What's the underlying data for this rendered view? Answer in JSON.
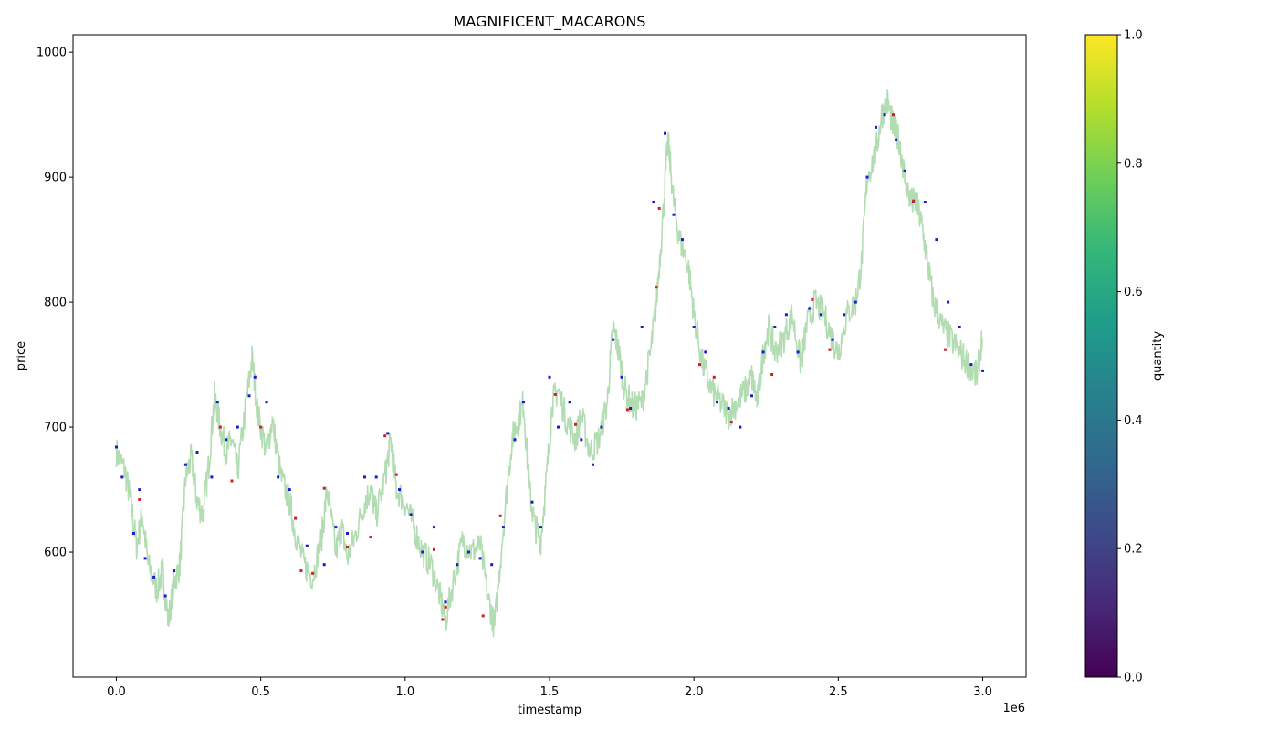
{
  "chart_data": {
    "type": "line",
    "title": "MAGNIFICENT_MACARONS",
    "xlabel": "timestamp",
    "ylabel": "price",
    "x_offset_label": "1e6",
    "xlim": [
      -0.15,
      3.15
    ],
    "ylim": [
      500,
      1014
    ],
    "x_ticks": [
      0.0,
      0.5,
      1.0,
      1.5,
      2.0,
      2.5,
      3.0
    ],
    "x_tick_labels": [
      "0.0",
      "0.5",
      "1.0",
      "1.5",
      "2.0",
      "2.5",
      "3.0"
    ],
    "y_ticks": [
      600,
      700,
      800,
      900,
      1000
    ],
    "y_tick_labels": [
      "600",
      "700",
      "800",
      "900",
      "1000"
    ],
    "grid": false,
    "price_series": {
      "color": "#b2dcb2",
      "x": [
        0.0,
        0.03,
        0.05,
        0.07,
        0.09,
        0.11,
        0.14,
        0.16,
        0.18,
        0.2,
        0.22,
        0.24,
        0.26,
        0.28,
        0.3,
        0.32,
        0.34,
        0.36,
        0.38,
        0.4,
        0.42,
        0.45,
        0.47,
        0.49,
        0.52,
        0.54,
        0.57,
        0.6,
        0.62,
        0.65,
        0.68,
        0.71,
        0.73,
        0.76,
        0.78,
        0.8,
        0.83,
        0.86,
        0.88,
        0.9,
        0.93,
        0.95,
        0.97,
        1.0,
        1.03,
        1.06,
        1.09,
        1.12,
        1.14,
        1.17,
        1.2,
        1.23,
        1.26,
        1.29,
        1.31,
        1.34,
        1.37,
        1.39,
        1.41,
        1.43,
        1.45,
        1.47,
        1.49,
        1.51,
        1.53,
        1.56,
        1.59,
        1.61,
        1.64,
        1.67,
        1.7,
        1.72,
        1.74,
        1.76,
        1.79,
        1.82,
        1.85,
        1.87,
        1.89,
        1.91,
        1.93,
        1.95,
        1.98,
        2.0,
        2.03,
        2.06,
        2.09,
        2.12,
        2.15,
        2.18,
        2.2,
        2.22,
        2.24,
        2.26,
        2.28,
        2.31,
        2.34,
        2.37,
        2.39,
        2.42,
        2.45,
        2.48,
        2.5,
        2.53,
        2.56,
        2.58,
        2.6,
        2.63,
        2.65,
        2.67,
        2.69,
        2.71,
        2.73,
        2.75,
        2.77,
        2.79,
        2.81,
        2.83,
        2.86,
        2.89,
        2.92,
        2.95,
        2.98,
        3.0
      ],
      "y": [
        680,
        665,
        640,
        605,
        630,
        590,
        570,
        585,
        545,
        575,
        590,
        660,
        675,
        640,
        630,
        670,
        725,
        700,
        680,
        690,
        665,
        720,
        755,
        710,
        680,
        705,
        660,
        640,
        615,
        590,
        580,
        610,
        650,
        600,
        620,
        595,
        615,
        640,
        650,
        630,
        660,
        690,
        650,
        640,
        620,
        600,
        590,
        565,
        545,
        580,
        610,
        600,
        605,
        560,
        540,
        620,
        690,
        705,
        720,
        650,
        620,
        610,
        660,
        720,
        730,
        705,
        690,
        710,
        680,
        690,
        720,
        780,
        760,
        730,
        715,
        720,
        760,
        800,
        860,
        930,
        880,
        850,
        830,
        790,
        750,
        730,
        720,
        710,
        720,
        730,
        740,
        720,
        760,
        780,
        760,
        770,
        790,
        750,
        780,
        800,
        790,
        770,
        760,
        790,
        800,
        830,
        900,
        920,
        950,
        960,
        940,
        930,
        900,
        880,
        880,
        860,
        830,
        800,
        780,
        770,
        760,
        750,
        740,
        775
      ],
      "band": 12
    },
    "buy_trades": {
      "color": "#1a1ad0",
      "x": [
        0.0,
        0.02,
        0.06,
        0.08,
        0.1,
        0.13,
        0.17,
        0.2,
        0.24,
        0.28,
        0.33,
        0.35,
        0.38,
        0.42,
        0.46,
        0.48,
        0.52,
        0.56,
        0.6,
        0.66,
        0.72,
        0.76,
        0.8,
        0.86,
        0.9,
        0.94,
        0.98,
        1.02,
        1.06,
        1.1,
        1.14,
        1.18,
        1.22,
        1.26,
        1.3,
        1.34,
        1.38,
        1.41,
        1.44,
        1.47,
        1.5,
        1.53,
        1.57,
        1.61,
        1.65,
        1.68,
        1.72,
        1.75,
        1.78,
        1.82,
        1.86,
        1.9,
        1.93,
        1.96,
        2.0,
        2.04,
        2.08,
        2.12,
        2.16,
        2.2,
        2.24,
        2.28,
        2.32,
        2.36,
        2.4,
        2.44,
        2.48,
        2.52,
        2.56,
        2.6,
        2.63,
        2.66,
        2.7,
        2.73,
        2.76,
        2.8,
        2.84,
        2.88,
        2.92,
        2.96,
        3.0
      ],
      "y": [
        684,
        660,
        615,
        650,
        595,
        580,
        565,
        585,
        670,
        680,
        660,
        720,
        690,
        700,
        725,
        740,
        720,
        660,
        650,
        605,
        590,
        620,
        615,
        660,
        660,
        695,
        650,
        630,
        600,
        620,
        560,
        590,
        600,
        595,
        590,
        620,
        690,
        720,
        640,
        620,
        740,
        700,
        720,
        690,
        670,
        700,
        770,
        740,
        715,
        780,
        880,
        935,
        870,
        850,
        780,
        760,
        720,
        715,
        700,
        725,
        760,
        780,
        790,
        760,
        795,
        790,
        770,
        790,
        800,
        900,
        940,
        950,
        930,
        905,
        880,
        880,
        850,
        800,
        780,
        750,
        745
      ]
    },
    "sell_trades": {
      "color": "#d02020",
      "x": [
        0.08,
        0.36,
        0.4,
        0.5,
        0.62,
        0.64,
        0.68,
        0.72,
        0.8,
        0.88,
        0.93,
        0.97,
        1.1,
        1.13,
        1.14,
        1.27,
        1.33,
        1.52,
        1.59,
        1.77,
        1.87,
        1.88,
        2.02,
        2.07,
        2.13,
        2.27,
        2.41,
        2.47,
        2.69,
        2.76,
        2.87
      ],
      "y": [
        642,
        700,
        657,
        700,
        627,
        585,
        583,
        651,
        604,
        612,
        693,
        662,
        602,
        546,
        556,
        549,
        629,
        726,
        702,
        714,
        812,
        875,
        750,
        740,
        704,
        742,
        802,
        762,
        950,
        881,
        762
      ]
    },
    "colorbar": {
      "label": "quantity",
      "ticks": [
        0.0,
        0.2,
        0.4,
        0.6,
        0.8,
        1.0
      ],
      "tick_labels": [
        "0.0",
        "0.2",
        "0.4",
        "0.6",
        "0.8",
        "1.0"
      ],
      "colors": [
        "#440154",
        "#482878",
        "#3e4989",
        "#31688e",
        "#26828e",
        "#1f9e89",
        "#35b779",
        "#6ece58",
        "#b5de2b",
        "#fde725"
      ]
    }
  }
}
